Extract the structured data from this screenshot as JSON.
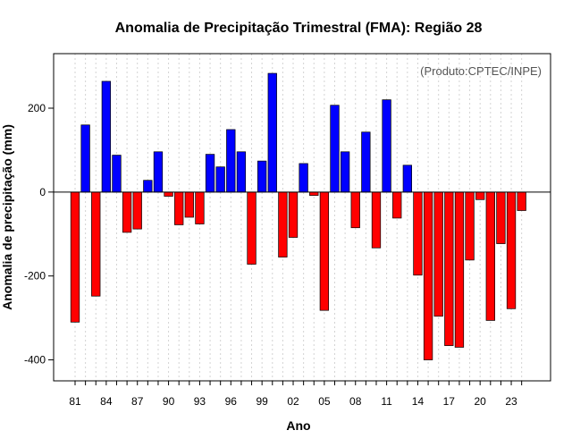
{
  "chart_data": {
    "type": "bar",
    "title": "Anomalia de Precipitação Trimestral (FMA): Região 28",
    "xlabel": "Ano",
    "ylabel": "Anomalia de precipitação (mm)",
    "annotation": "(Produto:CPTEC/INPE)",
    "ylim": [
      -450,
      330
    ],
    "yticks": [
      -400,
      -200,
      0,
      200
    ],
    "xtick_labels": [
      "81",
      "84",
      "87",
      "90",
      "93",
      "96",
      "99",
      "02",
      "05",
      "08",
      "11",
      "14",
      "17",
      "20",
      "23"
    ],
    "grid": true,
    "positive_color": "#0000ff",
    "negative_color": "#ff0000",
    "years": [
      1981,
      1982,
      1983,
      1984,
      1985,
      1986,
      1987,
      1988,
      1989,
      1990,
      1991,
      1992,
      1993,
      1994,
      1995,
      1996,
      1997,
      1998,
      1999,
      2000,
      2001,
      2002,
      2003,
      2004,
      2005,
      2006,
      2007,
      2008,
      2009,
      2010,
      2011,
      2012,
      2013,
      2014,
      2015,
      2016,
      2017,
      2018,
      2019,
      2020,
      2021,
      2022,
      2023,
      2024
    ],
    "values": [
      -310,
      160,
      -248,
      264,
      88,
      -96,
      -88,
      28,
      96,
      -10,
      -78,
      -60,
      -76,
      90,
      60,
      149,
      96,
      -172,
      74,
      283,
      -155,
      -108,
      68,
      -8,
      -282,
      207,
      96,
      -85,
      143,
      -133,
      220,
      -62,
      64,
      -198,
      -400,
      -296,
      -366,
      -370,
      -162,
      -18,
      -306,
      -123,
      -278,
      -44
    ]
  }
}
